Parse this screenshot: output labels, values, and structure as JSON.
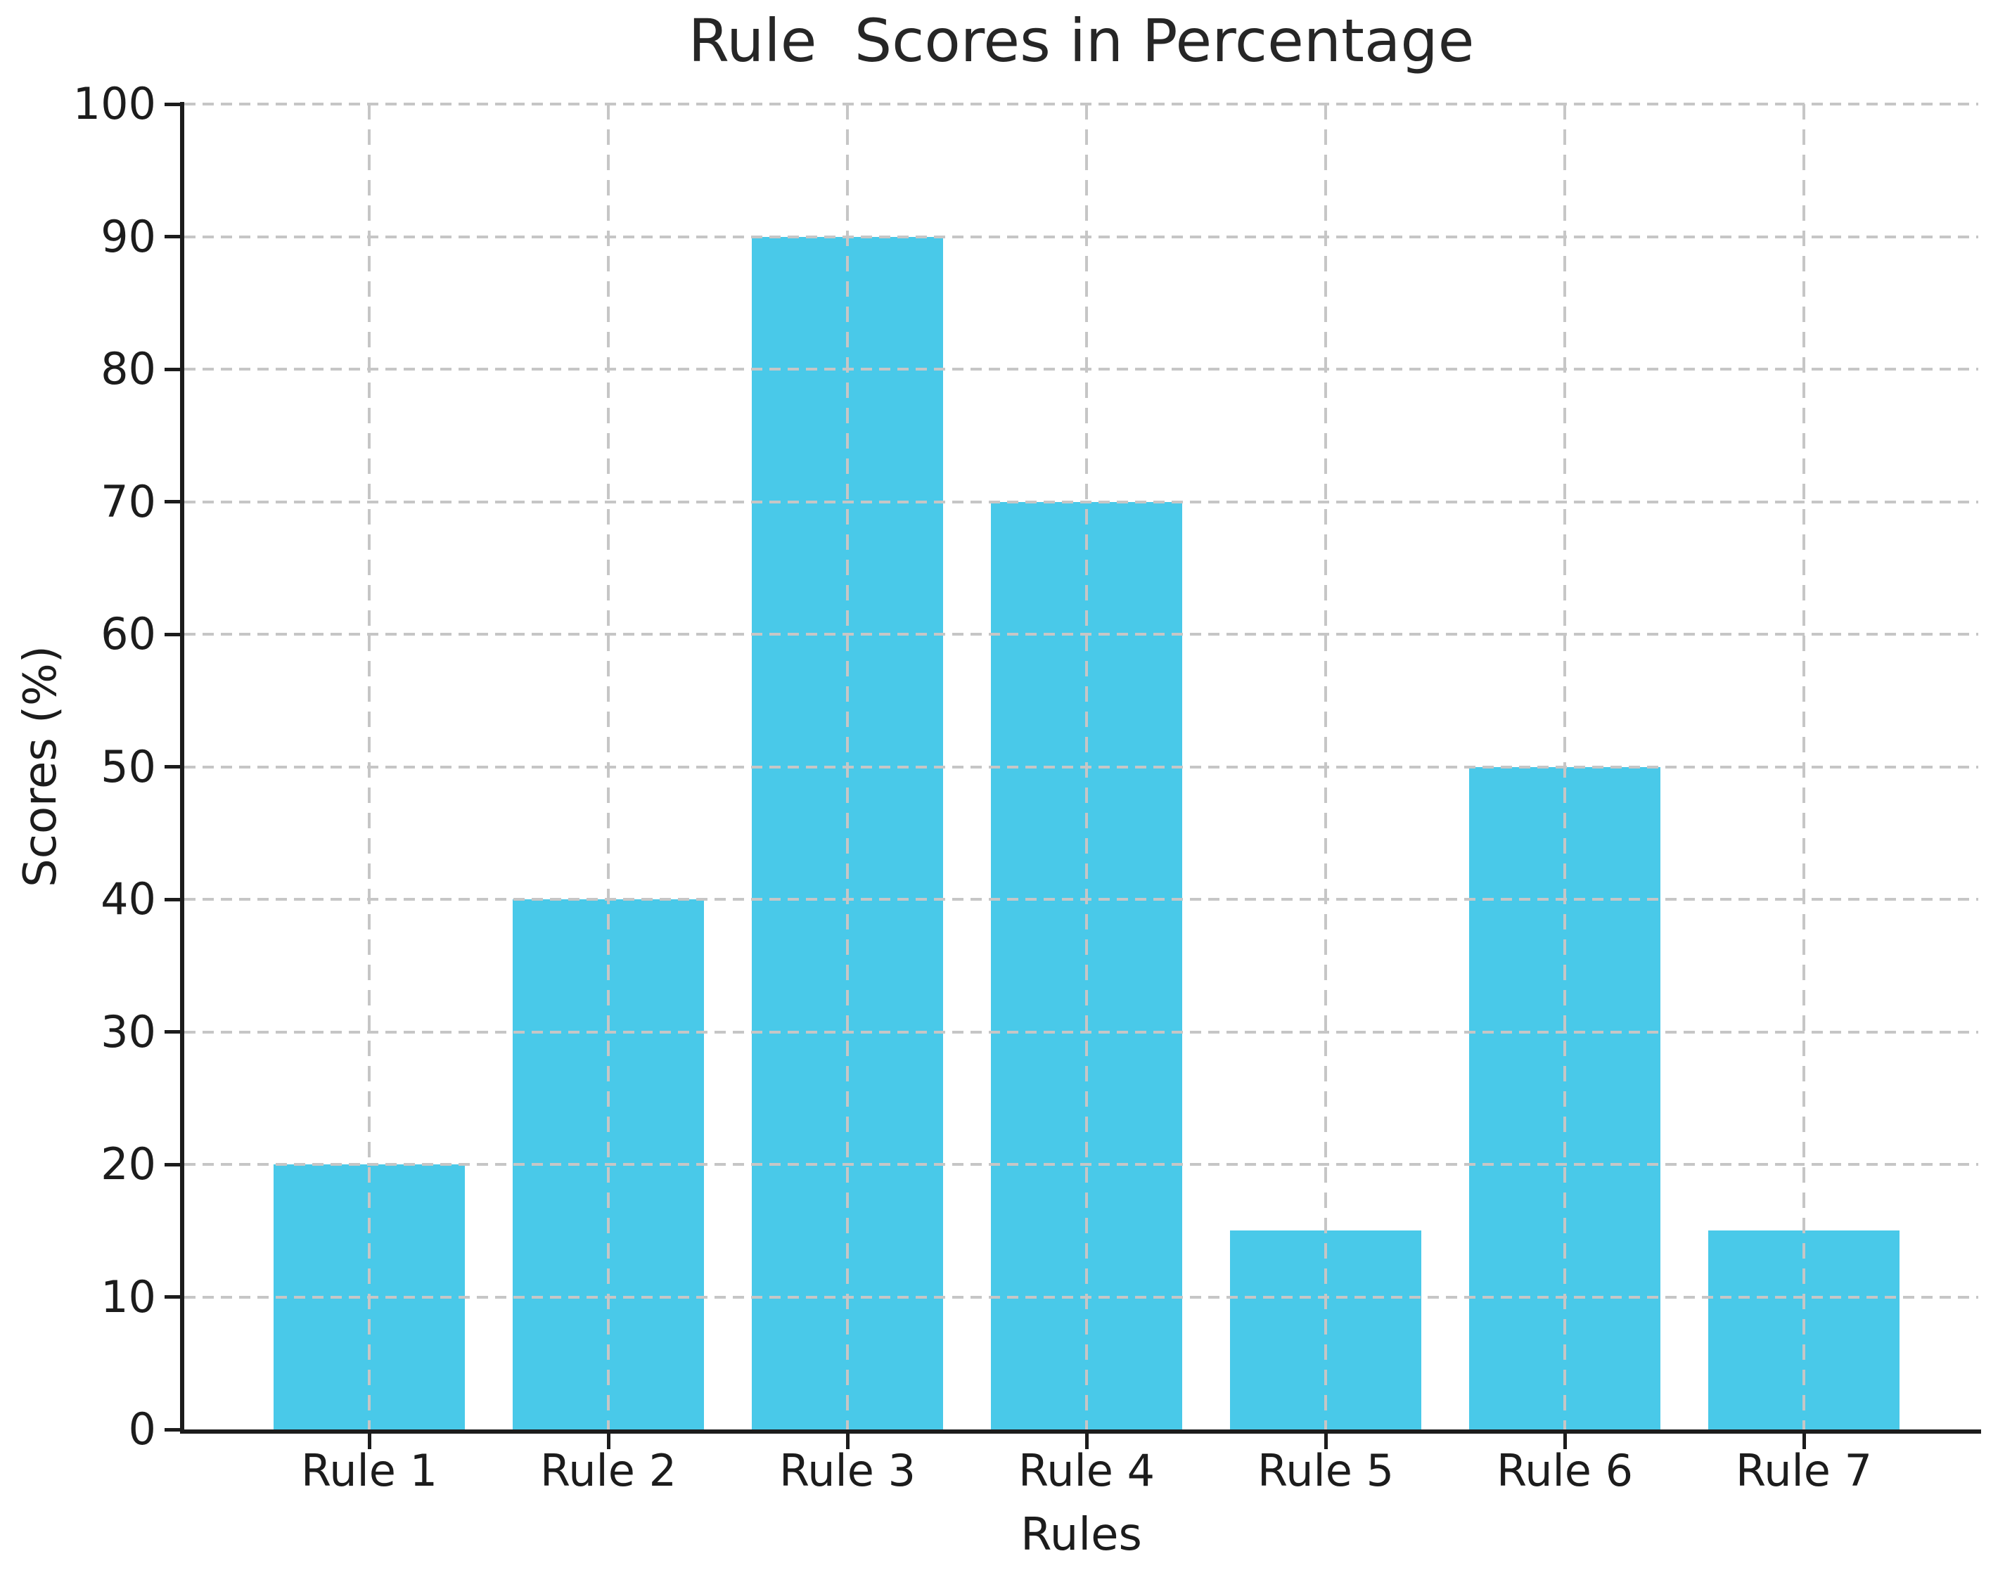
{
  "chart_data": {
    "type": "bar",
    "title": "Rule  Scores in Percentage",
    "xlabel": "Rules",
    "ylabel": "Scores (%)",
    "categories": [
      "Rule 1",
      "Rule 2",
      "Rule 3",
      "Rule 4",
      "Rule 5",
      "Rule 6",
      "Rule 7"
    ],
    "values": [
      20,
      40,
      90,
      70,
      15,
      50,
      15
    ],
    "ylim": [
      0,
      100
    ],
    "yticks": [
      0,
      10,
      20,
      30,
      40,
      50,
      60,
      70,
      80,
      90,
      100
    ],
    "bar_color": "#49C9E9",
    "grid": true,
    "grid_style": "dashed",
    "grid_color": "#c6c6c6",
    "axis_color": "#1c1c1c",
    "legend": "none"
  }
}
